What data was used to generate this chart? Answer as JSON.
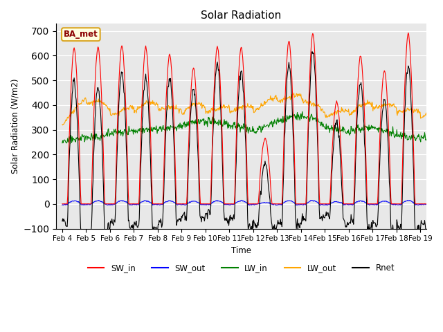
{
  "title": "Solar Radiation",
  "ylabel": "Solar Radiation (W/m2)",
  "xlabel": "Time",
  "xlim_days": [
    3.75,
    19.25
  ],
  "ylim": [
    -100,
    730
  ],
  "yticks": [
    -100,
    0,
    100,
    200,
    300,
    400,
    500,
    600,
    700
  ],
  "xtick_labels": [
    "Feb 4",
    "Feb 5",
    "Feb 6",
    "Feb 7",
    "Feb 8",
    "Feb 9",
    "Feb 10",
    "Feb 11",
    "Feb 12",
    "Feb 13",
    "Feb 14",
    "Feb 15",
    "Feb 16",
    "Feb 17",
    "Feb 18",
    "Feb 19"
  ],
  "xtick_positions": [
    4,
    5,
    6,
    7,
    8,
    9,
    10,
    11,
    12,
    13,
    14,
    15,
    16,
    17,
    18,
    19
  ],
  "legend_labels": [
    "SW_in",
    "SW_out",
    "LW_in",
    "LW_out",
    "Rnet"
  ],
  "legend_colors": [
    "red",
    "blue",
    "green",
    "orange",
    "black"
  ],
  "site_label": "BA_met",
  "background_color": "#e8e8e8",
  "line_width": 1.0
}
